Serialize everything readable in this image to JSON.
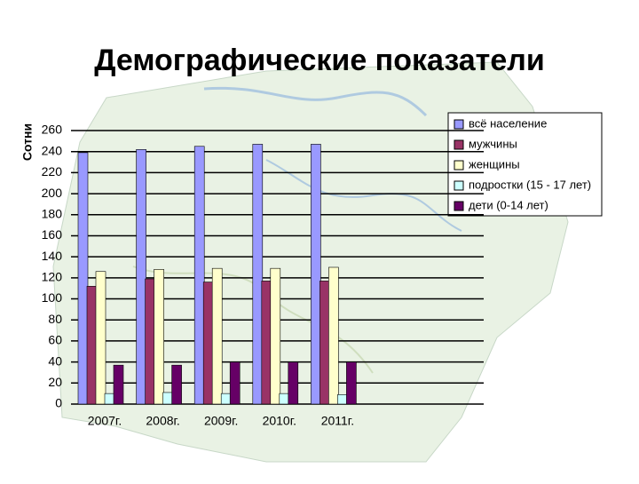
{
  "chart_data": {
    "type": "bar",
    "title": "Демографические показатели",
    "y_label": "Сотни",
    "categories": [
      "2007г.",
      "2008г.",
      "2009г.",
      "2010г.",
      "2011г."
    ],
    "series": [
      {
        "name": "всё население",
        "color": "#9999ff",
        "values": [
          239,
          242,
          245,
          247,
          247
        ]
      },
      {
        "name": "мужчины",
        "color": "#993366",
        "values": [
          112,
          119,
          116,
          117,
          117
        ]
      },
      {
        "name": "женщины",
        "color": "#ffffcc",
        "values": [
          126,
          128,
          129,
          129,
          130
        ]
      },
      {
        "name": "подростки (15 - 17 лет)",
        "color": "#ccffff",
        "values": [
          10,
          11,
          10,
          10,
          9
        ]
      },
      {
        "name": "дети (0-14 лет)",
        "color": "#660066",
        "values": [
          37,
          37,
          40,
          40,
          40
        ]
      }
    ],
    "ylim": [
      0,
      260
    ],
    "yticks": [
      0,
      20,
      40,
      60,
      80,
      100,
      120,
      140,
      160,
      180,
      200,
      220,
      240,
      260
    ],
    "grid": true
  }
}
